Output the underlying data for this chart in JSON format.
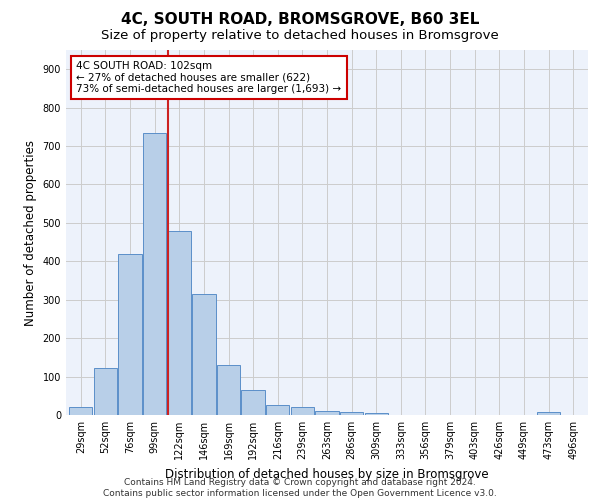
{
  "title": "4C, SOUTH ROAD, BROMSGROVE, B60 3EL",
  "subtitle": "Size of property relative to detached houses in Bromsgrove",
  "xlabel": "Distribution of detached houses by size in Bromsgrove",
  "ylabel": "Number of detached properties",
  "categories": [
    "29sqm",
    "52sqm",
    "76sqm",
    "99sqm",
    "122sqm",
    "146sqm",
    "169sqm",
    "192sqm",
    "216sqm",
    "239sqm",
    "263sqm",
    "286sqm",
    "309sqm",
    "333sqm",
    "356sqm",
    "379sqm",
    "403sqm",
    "426sqm",
    "449sqm",
    "473sqm",
    "496sqm"
  ],
  "bar_values": [
    20,
    122,
    420,
    733,
    480,
    315,
    130,
    65,
    25,
    22,
    10,
    8,
    6,
    0,
    0,
    0,
    0,
    0,
    0,
    8,
    0
  ],
  "bar_color": "#b8cfe8",
  "bar_edge_color": "#5b8fc9",
  "annotation_text": "4C SOUTH ROAD: 102sqm\n← 27% of detached houses are smaller (622)\n73% of semi-detached houses are larger (1,693) →",
  "annotation_box_color": "#ffffff",
  "annotation_box_edge": "#cc0000",
  "vline_color": "#cc2222",
  "ylim": [
    0,
    950
  ],
  "yticks": [
    0,
    100,
    200,
    300,
    400,
    500,
    600,
    700,
    800,
    900
  ],
  "grid_color": "#cccccc",
  "background_color": "#edf2fb",
  "footer_line1": "Contains HM Land Registry data © Crown copyright and database right 2024.",
  "footer_line2": "Contains public sector information licensed under the Open Government Licence v3.0.",
  "title_fontsize": 11,
  "subtitle_fontsize": 9.5,
  "axis_label_fontsize": 8.5,
  "tick_fontsize": 7,
  "annotation_fontsize": 7.5,
  "footer_fontsize": 6.5
}
